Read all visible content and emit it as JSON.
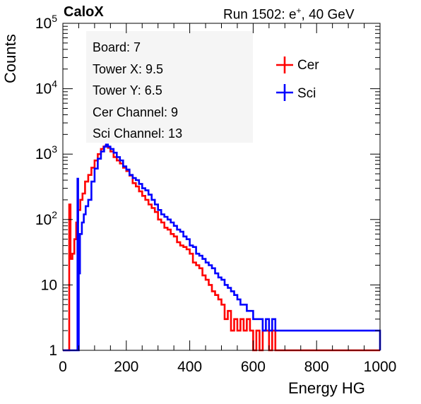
{
  "header": {
    "logo": "CaloX",
    "run_prefix": "Run 1502: e",
    "run_charge": "+",
    "run_suffix": ", 40 GeV"
  },
  "info_box": {
    "board": "Board: 7",
    "tower_x": "Tower X: 9.5",
    "tower_y": "Tower Y: 6.5",
    "cer_channel": "Cer Channel: 9",
    "sci_channel": "Sci Channel: 13"
  },
  "chart_data": {
    "type": "line",
    "title": "",
    "xlabel": "Energy HG",
    "ylabel": "Counts",
    "xlim": [
      0,
      1000
    ],
    "ylim": [
      1,
      100000
    ],
    "y_scale": "log",
    "x_ticks": [
      0,
      200,
      400,
      600,
      800,
      1000
    ],
    "y_ticks": [
      {
        "value": 1,
        "label": "1"
      },
      {
        "value": 10,
        "label": "10"
      },
      {
        "value": 100,
        "label": "10^2"
      },
      {
        "value": 1000,
        "label": "10^3"
      },
      {
        "value": 10000,
        "label": "10^4"
      },
      {
        "value": 100000,
        "label": "10^5"
      }
    ],
    "legend_position": "top-right",
    "series": [
      {
        "name": "Cer",
        "color": "#ff0000",
        "points": [
          [
            0,
            1
          ],
          [
            18,
            1
          ],
          [
            20,
            170
          ],
          [
            24,
            25
          ],
          [
            30,
            30
          ],
          [
            36,
            50
          ],
          [
            42,
            90
          ],
          [
            48,
            140
          ],
          [
            55,
            200
          ],
          [
            62,
            250
          ],
          [
            70,
            380
          ],
          [
            80,
            480
          ],
          [
            90,
            620
          ],
          [
            100,
            800
          ],
          [
            110,
            1000
          ],
          [
            120,
            1200
          ],
          [
            128,
            1300
          ],
          [
            135,
            1350
          ],
          [
            142,
            1250
          ],
          [
            150,
            1100
          ],
          [
            160,
            900
          ],
          [
            170,
            800
          ],
          [
            180,
            720
          ],
          [
            190,
            620
          ],
          [
            200,
            550
          ],
          [
            210,
            470
          ],
          [
            220,
            360
          ],
          [
            230,
            320
          ],
          [
            240,
            270
          ],
          [
            250,
            230
          ],
          [
            260,
            200
          ],
          [
            270,
            170
          ],
          [
            280,
            150
          ],
          [
            290,
            130
          ],
          [
            300,
            100
          ],
          [
            310,
            90
          ],
          [
            320,
            75
          ],
          [
            330,
            70
          ],
          [
            340,
            60
          ],
          [
            350,
            55
          ],
          [
            360,
            45
          ],
          [
            370,
            40
          ],
          [
            380,
            38
          ],
          [
            390,
            35
          ],
          [
            400,
            30
          ],
          [
            410,
            22
          ],
          [
            420,
            20
          ],
          [
            430,
            18
          ],
          [
            440,
            14
          ],
          [
            450,
            12
          ],
          [
            460,
            10
          ],
          [
            470,
            8
          ],
          [
            480,
            7
          ],
          [
            490,
            6
          ],
          [
            500,
            5
          ],
          [
            510,
            3
          ],
          [
            520,
            4
          ],
          [
            530,
            2
          ],
          [
            540,
            3
          ],
          [
            550,
            2
          ],
          [
            560,
            3
          ],
          [
            570,
            2
          ],
          [
            580,
            3
          ],
          [
            590,
            2
          ],
          [
            600,
            1
          ],
          [
            610,
            2
          ],
          [
            620,
            1
          ],
          [
            630,
            2
          ],
          [
            640,
            2
          ],
          [
            650,
            1
          ],
          [
            660,
            2
          ],
          [
            670,
            1
          ],
          [
            680,
            1
          ],
          [
            690,
            1
          ],
          [
            700,
            1
          ],
          [
            1000,
            1
          ]
        ]
      },
      {
        "name": "Sci",
        "color": "#0000ff",
        "points": [
          [
            0,
            1
          ],
          [
            44,
            1
          ],
          [
            46,
            420
          ],
          [
            48,
            1
          ],
          [
            50,
            15
          ],
          [
            54,
            60
          ],
          [
            60,
            90
          ],
          [
            66,
            120
          ],
          [
            72,
            160
          ],
          [
            80,
            200
          ],
          [
            90,
            380
          ],
          [
            100,
            600
          ],
          [
            110,
            850
          ],
          [
            120,
            1100
          ],
          [
            130,
            1300
          ],
          [
            136,
            1400
          ],
          [
            142,
            1300
          ],
          [
            150,
            1200
          ],
          [
            160,
            1050
          ],
          [
            170,
            900
          ],
          [
            180,
            800
          ],
          [
            190,
            650
          ],
          [
            200,
            580
          ],
          [
            210,
            480
          ],
          [
            220,
            430
          ],
          [
            230,
            400
          ],
          [
            240,
            350
          ],
          [
            250,
            300
          ],
          [
            260,
            280
          ],
          [
            270,
            240
          ],
          [
            280,
            200
          ],
          [
            290,
            170
          ],
          [
            300,
            140
          ],
          [
            310,
            120
          ],
          [
            320,
            110
          ],
          [
            330,
            100
          ],
          [
            340,
            90
          ],
          [
            350,
            80
          ],
          [
            360,
            70
          ],
          [
            370,
            65
          ],
          [
            380,
            55
          ],
          [
            390,
            50
          ],
          [
            400,
            40
          ],
          [
            410,
            38
          ],
          [
            420,
            30
          ],
          [
            430,
            28
          ],
          [
            440,
            25
          ],
          [
            450,
            22
          ],
          [
            460,
            20
          ],
          [
            470,
            18
          ],
          [
            480,
            15
          ],
          [
            490,
            13
          ],
          [
            500,
            12
          ],
          [
            510,
            10
          ],
          [
            520,
            9
          ],
          [
            530,
            8
          ],
          [
            540,
            7
          ],
          [
            550,
            6
          ],
          [
            560,
            5
          ],
          [
            570,
            5
          ],
          [
            580,
            4
          ],
          [
            590,
            4
          ],
          [
            600,
            3
          ],
          [
            610,
            3
          ],
          [
            620,
            3
          ],
          [
            630,
            2
          ],
          [
            640,
            3
          ],
          [
            650,
            2
          ],
          [
            660,
            3
          ],
          [
            670,
            2
          ],
          [
            680,
            2
          ],
          [
            690,
            2
          ],
          [
            700,
            2
          ],
          [
            720,
            2
          ],
          [
            740,
            2
          ],
          [
            760,
            2
          ],
          [
            780,
            2
          ],
          [
            800,
            2
          ],
          [
            820,
            2
          ],
          [
            840,
            2
          ],
          [
            860,
            2
          ],
          [
            880,
            2
          ],
          [
            900,
            2
          ],
          [
            920,
            2
          ],
          [
            940,
            2
          ],
          [
            960,
            2
          ],
          [
            980,
            2
          ],
          [
            1000,
            1
          ]
        ]
      }
    ]
  }
}
